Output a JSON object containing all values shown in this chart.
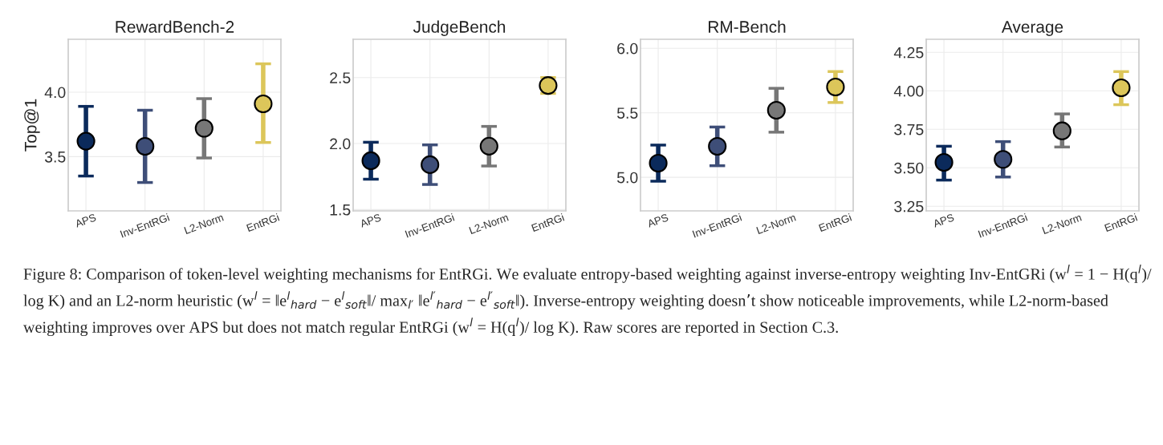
{
  "chart_data": [
    {
      "type": "scatter",
      "title": "RewardBench-2",
      "ylabel": "Top@1",
      "categories": [
        "APS",
        "Inv-EntRGi",
        "L2-Norm",
        "EntRGi"
      ],
      "values": [
        3.62,
        3.58,
        3.72,
        3.91
      ],
      "errors": [
        [
          3.35,
          3.89
        ],
        [
          3.3,
          3.86
        ],
        [
          3.49,
          3.95
        ],
        [
          3.61,
          4.22
        ]
      ],
      "colors": [
        "#0b2a5b",
        "#3e4e78",
        "#777777",
        "#dcc65a"
      ],
      "ylim": [
        3.08,
        4.41
      ],
      "yticks": [
        3.5,
        {
          "value": 4.0,
          "label": "4.0"
        }
      ],
      "grid": true,
      "marker": "circle"
    },
    {
      "type": "scatter",
      "title": "JudgeBench",
      "categories": [
        "APS",
        "Inv-EntRGi",
        "L2-Norm",
        "EntRGi"
      ],
      "values": [
        1.87,
        1.84,
        1.98,
        2.44
      ],
      "errors": [
        [
          1.73,
          2.01
        ],
        [
          1.69,
          1.99
        ],
        [
          1.83,
          2.13
        ],
        [
          2.38,
          2.5
        ]
      ],
      "colors": [
        "#0b2a5b",
        "#3e4e78",
        "#777777",
        "#dcc65a"
      ],
      "ylim": [
        1.49,
        2.79
      ],
      "yticks": [
        1.5,
        {
          "value": 2.0,
          "label": "2.0"
        },
        2.5
      ],
      "grid": true,
      "marker": "circle"
    },
    {
      "type": "scatter",
      "title": "RM-Bench",
      "categories": [
        "APS",
        "Inv-EntRGi",
        "L2-Norm",
        "EntRGi"
      ],
      "values": [
        5.11,
        5.24,
        5.52,
        5.7
      ],
      "errors": [
        [
          4.97,
          5.25
        ],
        [
          5.09,
          5.39
        ],
        [
          5.35,
          5.69
        ],
        [
          5.58,
          5.82
        ]
      ],
      "colors": [
        "#0b2a5b",
        "#3e4e78",
        "#777777",
        "#dcc65a"
      ],
      "ylim": [
        4.74,
        6.07
      ],
      "yticks": [
        {
          "value": 5.0,
          "label": "5.0"
        },
        5.5,
        {
          "value": 6.0,
          "label": "6.0"
        }
      ],
      "grid": true,
      "marker": "circle"
    },
    {
      "type": "scatter",
      "title": "Average",
      "categories": [
        "APS",
        "Inv-EntRGi",
        "L2-Norm",
        "EntRGi"
      ],
      "values": [
        3.535,
        3.555,
        3.74,
        4.02
      ],
      "errors": [
        [
          3.42,
          3.64
        ],
        [
          3.44,
          3.67
        ],
        [
          3.635,
          3.85
        ],
        [
          3.91,
          4.125
        ]
      ],
      "colors": [
        "#0b2a5b",
        "#3e4e78",
        "#777777",
        "#dcc65a"
      ],
      "ylim": [
        3.22,
        4.335
      ],
      "yticks": [
        {
          "value": 3.25,
          "label": "3.25"
        },
        {
          "value": 3.5,
          "label": "3.50"
        },
        {
          "value": 3.75,
          "label": "3.75"
        },
        {
          "value": 4.0,
          "label": "4.00"
        },
        {
          "value": 4.25,
          "label": "4.25"
        }
      ],
      "grid": true,
      "marker": "circle",
      "annotations": [
        "Figure 8: Comparison of token-level weighting mechanisms for EntRGi. We evaluate entropy-based weighting against inverse-entropy weighting Inv-EntGRi (w$^{l}$ = 1 − H(q$^{l}$)/ log K) and an L2-norm heuristic (w$^{l}$ = ‖e$^{l}$$_{hard}$ − e$^{l}$$_{soft}$‖/ max$_{l′}$ ‖e$^{l′}$$_{hard}$ − e$^{l′}$$_{soft}$‖). Inverse-entropy weighting doesn’t show noticeable improvements, while L2-norm-based weighting improves over APS but does not match regular EntRGi (w$^{l}$ = H(q$^{l}$)/ log K). Raw scores are reported in Section C.3."
      ]
    }
  ]
}
